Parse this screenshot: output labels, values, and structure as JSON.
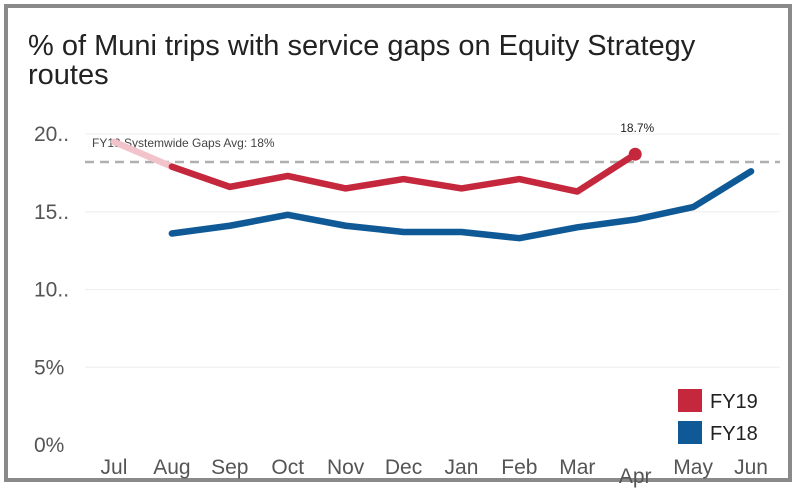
{
  "chart_data": {
    "type": "line",
    "title": "% of Muni trips with service gaps on Equity Strategy routes",
    "categories": [
      "Jul",
      "Aug",
      "Sep",
      "Oct",
      "Nov",
      "Dec",
      "Jan",
      "Feb",
      "Mar",
      "Apr",
      "May",
      "Jun"
    ],
    "series": [
      {
        "name": "FY19",
        "color": "#c5283d",
        "values": [
          19.5,
          17.9,
          16.6,
          17.3,
          16.5,
          17.1,
          16.5,
          17.1,
          16.3,
          18.7,
          null,
          null
        ]
      },
      {
        "name": "FY18",
        "color": "#0f5a96",
        "values": [
          null,
          13.6,
          14.1,
          14.8,
          14.1,
          13.7,
          13.7,
          13.3,
          14.0,
          14.5,
          15.3,
          17.6
        ]
      }
    ],
    "ylim": [
      0,
      20
    ],
    "yticks": [
      {
        "value": 0,
        "label": "0%"
      },
      {
        "value": 5,
        "label": "5%"
      },
      {
        "value": 10,
        "label": "10.."
      },
      {
        "value": 15,
        "label": "15.."
      },
      {
        "value": 20,
        "label": "20.."
      }
    ],
    "reference_line": {
      "value": 18.2,
      "label": "FY19 Systemwide Gaps Avg: 18%",
      "color": "#b0b0b0"
    },
    "annotations": [
      {
        "series": "FY19",
        "category": "Apr",
        "label": "18.7%"
      }
    ],
    "legend": {
      "position": "bottom-right",
      "entries": [
        "FY19",
        "FY18"
      ]
    },
    "grid": true
  }
}
